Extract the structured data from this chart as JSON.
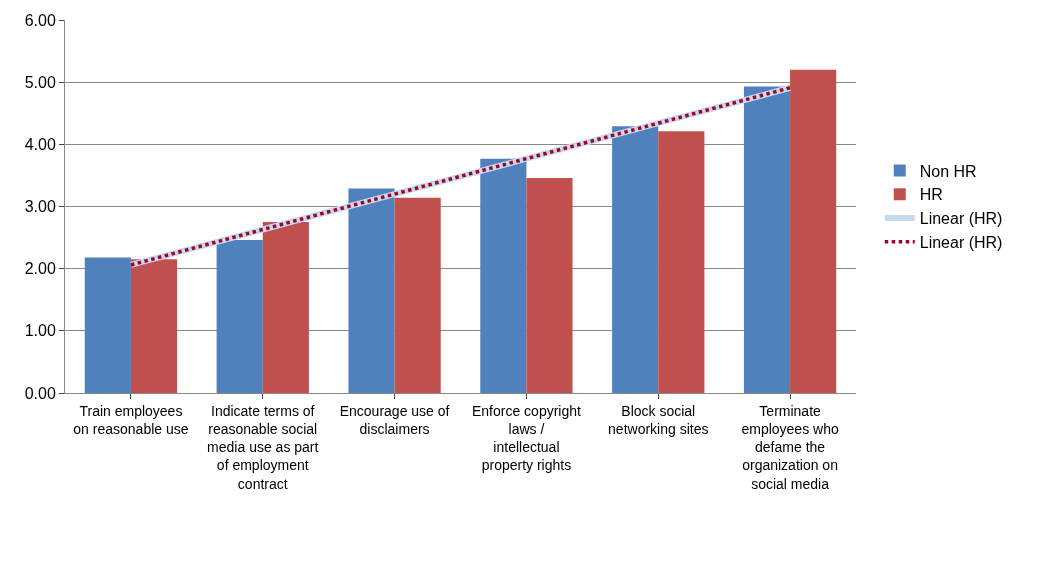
{
  "chart_data": {
    "type": "bar",
    "categories": [
      "Train employees on reasonable use",
      "Indicate terms of reasonable social media use as part of employment contract",
      "Encourage use of disclaimers",
      "Enforce copyright laws / intellectual property rights",
      "Block social networking sites",
      "Terminate employees who defame the organization on social media"
    ],
    "series": [
      {
        "name": "Non HR",
        "color": "#4f81bd",
        "values": [
          2.18,
          2.46,
          3.29,
          3.77,
          4.29,
          4.93
        ]
      },
      {
        "name": "HR",
        "color": "#c0504d",
        "values": [
          2.15,
          2.75,
          3.14,
          3.46,
          4.21,
          5.2
        ]
      },
      {
        "name": "Linear (HR)",
        "type": "line",
        "color": "#c6d9f1",
        "line_style": "solid",
        "values": [
          2.06,
          2.63,
          3.2,
          3.77,
          4.34,
          4.91
        ]
      },
      {
        "name": "Linear (HR)",
        "type": "line",
        "color": "#a50021",
        "line_style": "dotted",
        "values": [
          2.06,
          2.63,
          3.2,
          3.77,
          4.34,
          4.91
        ]
      }
    ],
    "ylim": [
      0,
      6
    ],
    "yticks": [
      {
        "value": 0,
        "label": "0.00"
      },
      {
        "value": 1,
        "label": "1.00"
      },
      {
        "value": 2,
        "label": "2.00"
      },
      {
        "value": 3,
        "label": "3.00"
      },
      {
        "value": 4,
        "label": "4.00"
      },
      {
        "value": 5,
        "label": "5.00"
      },
      {
        "value": 6,
        "label": "6.00"
      }
    ],
    "grid": "y",
    "legend": "right",
    "marker": "none"
  }
}
